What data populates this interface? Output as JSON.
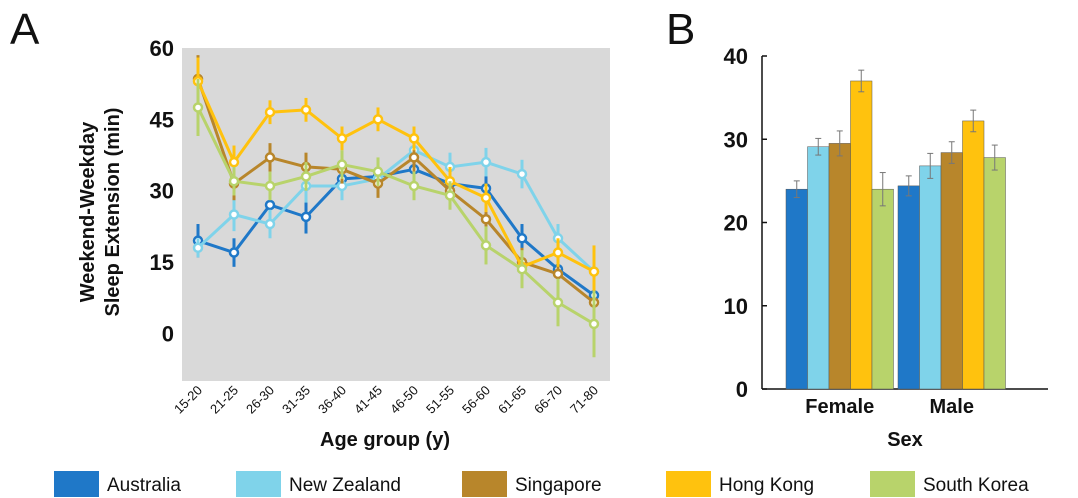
{
  "panel_labels": {
    "a": "A",
    "b": "B"
  },
  "colors": {
    "Australia": "#1f78c8",
    "New Zealand": "#7fd3ea",
    "Singapore": "#b8862b",
    "Hong Kong": "#ffc20e",
    "South Korea": "#b8d36b",
    "panel_a_background": "#d9d9d9"
  },
  "legend": [
    "Australia",
    "New Zealand",
    "Singapore",
    "Hong Kong",
    "South Korea"
  ],
  "chart_data": [
    {
      "type": "line",
      "panel": "A",
      "xlabel": "Age group (y)",
      "ylabel_line1": "Weekend-Weekday",
      "ylabel_line2": "Sleep Extension  (min)",
      "categories": [
        "15-20",
        "21-25",
        "26-30",
        "31-35",
        "36-40",
        "41-45",
        "46-50",
        "51-55",
        "56-60",
        "61-65",
        "66-70",
        "71-80"
      ],
      "yticks": [
        0,
        15,
        30,
        45,
        60
      ],
      "ylim": [
        -10,
        60
      ],
      "grid": false,
      "series": [
        {
          "name": "Australia",
          "values": [
            19.5,
            17,
            27,
            24.5,
            32.5,
            33,
            34.5,
            31.5,
            30.5,
            20,
            13.5,
            8
          ],
          "err": [
            3.5,
            3,
            3,
            3.5,
            3,
            3,
            3,
            3,
            3,
            3,
            3,
            3
          ]
        },
        {
          "name": "New Zealand",
          "values": [
            18,
            25,
            23,
            31,
            31,
            32.5,
            38.5,
            35,
            36,
            33.5,
            20,
            13
          ],
          "err": [
            2,
            3.5,
            3,
            3.5,
            3,
            3,
            3,
            3,
            3,
            3,
            3,
            4
          ]
        },
        {
          "name": "Singapore",
          "values": [
            53.5,
            31.5,
            37,
            35,
            34.5,
            31.5,
            37,
            30,
            24,
            15,
            12.5,
            6.5
          ],
          "err": [
            5,
            3.5,
            3,
            3,
            3,
            3,
            3,
            3,
            3,
            3,
            4,
            5
          ]
        },
        {
          "name": "Hong Kong",
          "values": [
            53,
            36,
            46.5,
            47,
            41,
            45,
            41,
            32,
            28.5,
            14,
            17,
            13
          ],
          "err": [
            5,
            3.5,
            2.5,
            2.5,
            2.5,
            2.5,
            2.5,
            3,
            3,
            3,
            3,
            5.5
          ]
        },
        {
          "name": "South Korea",
          "values": [
            47.5,
            32,
            31,
            33,
            35.5,
            34,
            31,
            29,
            18.5,
            13.5,
            6.5,
            2
          ],
          "err": [
            6,
            3,
            3,
            3,
            3,
            3,
            3,
            3,
            4,
            4,
            5,
            7
          ]
        }
      ]
    },
    {
      "type": "bar",
      "panel": "B",
      "xlabel": "Sex",
      "categories": [
        "Female",
        "Male"
      ],
      "yticks": [
        0,
        10,
        20,
        30,
        40
      ],
      "ylim": [
        0,
        40
      ],
      "grid": false,
      "series": [
        {
          "name": "Australia",
          "values": [
            24,
            24.4
          ],
          "err": [
            1,
            1.2
          ]
        },
        {
          "name": "New Zealand",
          "values": [
            29.1,
            26.8
          ],
          "err": [
            1,
            1.5
          ]
        },
        {
          "name": "Singapore",
          "values": [
            29.5,
            28.4
          ],
          "err": [
            1.5,
            1.3
          ]
        },
        {
          "name": "Hong Kong",
          "values": [
            37,
            32.2
          ],
          "err": [
            1.3,
            1.3
          ]
        },
        {
          "name": "South Korea",
          "values": [
            24,
            27.8
          ],
          "err": [
            2,
            1.5
          ]
        }
      ]
    }
  ]
}
